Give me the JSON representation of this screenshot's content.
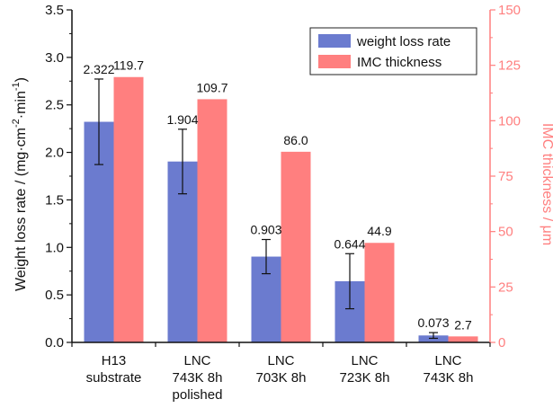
{
  "chart_data": {
    "type": "bar",
    "categories": [
      [
        "H13",
        "substrate"
      ],
      [
        "LNC",
        "743K 8h",
        "polished"
      ],
      [
        "LNC",
        "703K 8h"
      ],
      [
        "LNC",
        "723K 8h"
      ],
      [
        "LNC",
        "743K 8h"
      ]
    ],
    "series": [
      {
        "name": "weight loss rate",
        "axis": "left",
        "color": "#6b7bcf",
        "values": [
          2.322,
          1.904,
          0.903,
          0.644,
          0.073
        ],
        "labels": [
          "2.322",
          "1.904",
          "0.903",
          "0.644",
          "0.073"
        ],
        "error": [
          0.45,
          0.34,
          0.18,
          0.29,
          0.03
        ]
      },
      {
        "name": "IMC thickness",
        "axis": "right",
        "color": "#ff7f7f",
        "values": [
          119.7,
          109.7,
          86.0,
          44.9,
          2.7
        ],
        "labels": [
          "119.7",
          "109.7",
          "86.0",
          "44.9",
          "2.7"
        ]
      }
    ],
    "y_left": {
      "label_parts": [
        "Weight loss rate / (mg·cm",
        "-2",
        "·min",
        "-1",
        ")"
      ],
      "lim": [
        0,
        3.5
      ],
      "ticks": [
        "0.0",
        "0.5",
        "1.0",
        "1.5",
        "2.0",
        "2.5",
        "3.0",
        "3.5"
      ],
      "color": "#111111"
    },
    "y_right": {
      "label": "IMC thickness / μm",
      "lim": [
        0,
        150
      ],
      "ticks": [
        "0",
        "25",
        "50",
        "75",
        "100",
        "125",
        "150"
      ],
      "color": "#ff7f7f"
    },
    "legend": {
      "position": "top-right"
    },
    "grid": false
  }
}
